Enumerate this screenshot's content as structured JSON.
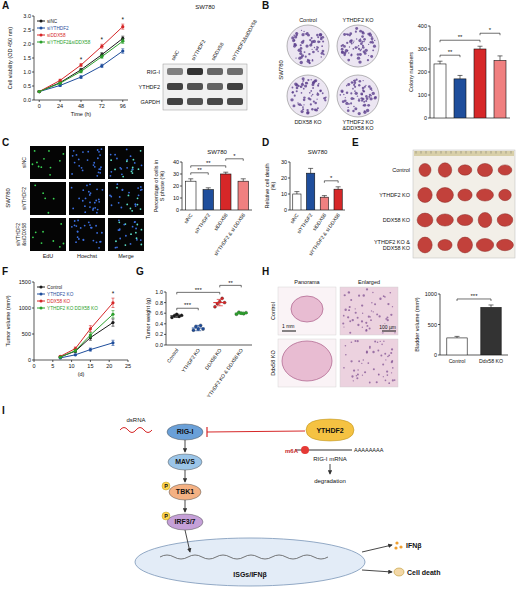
{
  "chart_data": [
    {
      "type": "line",
      "x_label": "Time (h)",
      "y_label": "Cell viability (OD 450 nm)",
      "x": [
        0,
        24,
        48,
        72,
        96
      ],
      "xlim": [
        -6,
        102
      ],
      "xticks": [
        0,
        24,
        48,
        72,
        96
      ],
      "ylim": [
        0,
        3
      ],
      "yticks": [
        {
          "value": 0,
          "label": "0.0"
        },
        {
          "value": 0.5,
          "label": "0.5"
        },
        {
          "value": 1,
          "label": "1.0"
        },
        {
          "value": 1.5,
          "label": "1.5"
        },
        {
          "value": 2,
          "label": "2.0"
        },
        {
          "value": 2.5,
          "label": "2.5"
        },
        {
          "value": 3,
          "label": "3.0"
        }
      ],
      "legend": "upper left",
      "marker": "circle",
      "series": [
        {
          "name": "siNC",
          "color": "#1a1a1a",
          "values": [
            0.3,
            0.62,
            1.08,
            1.62,
            2.2
          ],
          "errors": [
            0.02,
            0.04,
            0.05,
            0.07,
            0.08
          ]
        },
        {
          "name": "siYTHDF2",
          "color": "#1f4e9c",
          "values": [
            0.3,
            0.52,
            0.82,
            1.22,
            1.75
          ],
          "errors": [
            0.02,
            0.03,
            0.05,
            0.06,
            0.08
          ]
        },
        {
          "name": "siDDX58",
          "color": "#d62728",
          "values": [
            0.3,
            0.7,
            1.25,
            1.92,
            2.62
          ],
          "errors": [
            0.02,
            0.04,
            0.05,
            0.07,
            0.09
          ]
        },
        {
          "name": "siYTHDF2&siDDX58",
          "color": "#2ca02c",
          "values": [
            0.3,
            0.6,
            1.02,
            1.55,
            2.1
          ],
          "errors": [
            0.02,
            0.03,
            0.05,
            0.06,
            0.08
          ]
        }
      ],
      "annotations": [
        {
          "text": "*",
          "x": 48
        },
        {
          "text": "*",
          "x": 72
        },
        {
          "text": "*",
          "x": 96
        }
      ]
    },
    {
      "type": "bar",
      "y_label": "Colony numbers",
      "tick_labels": "y",
      "values": [
        235,
        170,
        300,
        250
      ],
      "errors": [
        12,
        15,
        12,
        20
      ],
      "colors": [
        "#ffffff",
        "#1f4e9c",
        "#d62728",
        "#f08080"
      ],
      "ylim": [
        0,
        400
      ],
      "yticks": [
        0,
        100,
        200,
        300,
        400
      ],
      "annotations": [
        {
          "text": "**",
          "between": [
            0,
            1
          ]
        },
        {
          "text": "**",
          "between": [
            0,
            2
          ]
        },
        {
          "text": "*",
          "between": [
            2,
            3
          ]
        }
      ]
    },
    {
      "type": "bar",
      "title": "SW780",
      "y_label": "Percentage of cells in S phase (%)",
      "categories": [
        "siNC",
        "siYTHDF2",
        "siDDX58",
        "siYTHDF2 & si DDX58"
      ],
      "values": [
        24,
        17,
        30,
        24
      ],
      "errors": [
        2,
        1.5,
        1.5,
        2
      ],
      "colors": [
        "#ffffff",
        "#1f4e9c",
        "#d62728",
        "#f08080"
      ],
      "ylim": [
        0,
        40
      ],
      "yticks": [
        0,
        10,
        20,
        30,
        40
      ],
      "annotations": [
        {
          "text": "**",
          "between": [
            0,
            1
          ]
        },
        {
          "text": "**",
          "between": [
            0,
            2
          ]
        },
        {
          "text": "*",
          "between": [
            2,
            3
          ]
        }
      ]
    },
    {
      "type": "bar",
      "title": "SW780",
      "y_label": "Relative cell death (%)",
      "categories": [
        "siNC",
        "siYTHDF2",
        "siDDX58",
        "siYTHDF2 & si DDX58"
      ],
      "values": [
        10,
        23,
        8,
        13
      ],
      "errors": [
        1.5,
        3,
        1,
        1.5
      ],
      "colors": [
        "#ffffff",
        "#1f4e9c",
        "#f08080",
        "#d62728"
      ],
      "ylim": [
        0,
        30
      ],
      "yticks": [
        0,
        10,
        20,
        30
      ],
      "annotations": [
        {
          "text": "*",
          "between": [
            2,
            3
          ]
        }
      ]
    },
    {
      "type": "line",
      "x_label": "(d)",
      "y_label": "Tumor volume (mm³)",
      "x": [
        7,
        11,
        15,
        21
      ],
      "xlim": [
        0,
        25
      ],
      "xticks": [
        0,
        5,
        10,
        15,
        20,
        25
      ],
      "ylim": [
        0,
        1500
      ],
      "yticks": [
        0,
        500,
        1000,
        1500
      ],
      "legend": "upper left",
      "marker": "circle",
      "series": [
        {
          "name": "Control",
          "color": "#1a1a1a",
          "values": [
            60,
            170,
            430,
            720
          ],
          "errors": [
            10,
            25,
            50,
            70
          ]
        },
        {
          "name": "YTHDF2 KO",
          "color": "#1f4e9c",
          "values": [
            40,
            100,
            200,
            330
          ],
          "errors": [
            8,
            15,
            30,
            50
          ]
        },
        {
          "name": "DDX58 KO",
          "color": "#d62728",
          "values": [
            70,
            220,
            600,
            1100
          ],
          "errors": [
            10,
            30,
            60,
            90
          ]
        },
        {
          "name": "YTHDF2 KO DDX58 KO",
          "color": "#2ca02c",
          "values": [
            55,
            180,
            480,
            880
          ],
          "errors": [
            10,
            25,
            50,
            70
          ]
        }
      ],
      "annotations": [
        {
          "text": "*",
          "x": 21
        }
      ]
    },
    {
      "type": "dot",
      "y_label": "Tumor weight (g)",
      "categories": [
        "Control",
        "YTHDF2 KO",
        "DDX58 KO",
        "YTHDF2 KO & DDX58 KO"
      ],
      "values": [
        0.55,
        0.32,
        0.8,
        0.6
      ],
      "errors": [
        0.03,
        0.05,
        0.06,
        0.02
      ],
      "points": [
        [
          0.52,
          0.55,
          0.58,
          0.54,
          0.56
        ],
        [
          0.28,
          0.35,
          0.3,
          0.37,
          0.3
        ],
        [
          0.72,
          0.78,
          0.82,
          0.88,
          0.8
        ],
        [
          0.58,
          0.62,
          0.6,
          0.59,
          0.61
        ]
      ],
      "colors": [
        "#1a1a1a",
        "#1f4e9c",
        "#d62728",
        "#2ca02c"
      ],
      "ylim": [
        0,
        1
      ],
      "yticks": [
        {
          "value": 0,
          "label": "0.0"
        },
        {
          "value": 0.2,
          "label": "0.2"
        },
        {
          "value": 0.4,
          "label": "0.4"
        },
        {
          "value": 0.6,
          "label": "0.6"
        },
        {
          "value": 0.8,
          "label": "0.8"
        },
        {
          "value": 1,
          "label": "1.0"
        }
      ],
      "annotations": [
        {
          "text": "***",
          "between": [
            0,
            1
          ]
        },
        {
          "text": "***",
          "between": [
            0,
            2
          ]
        },
        {
          "text": "**",
          "between": [
            2,
            3
          ]
        }
      ]
    },
    {
      "type": "bar",
      "y_label": "Bladder volume (mm³)",
      "categories": [
        "Control",
        "Ddx58 KO"
      ],
      "values": [
        280,
        780
      ],
      "errors": [
        25,
        40
      ],
      "colors": [
        "#ffffff",
        "#333333"
      ],
      "ylim": [
        0,
        1000
      ],
      "yticks": [
        0,
        500,
        1000
      ],
      "annotations": [
        {
          "text": "***",
          "between": [
            0,
            1
          ]
        }
      ]
    }
  ],
  "figure": {
    "panel_letters": [
      "A",
      "B",
      "C",
      "D",
      "E",
      "F",
      "G",
      "H",
      "I"
    ],
    "blot": {
      "title": "SW780",
      "lanes": [
        "siNC",
        "siYTHDF2",
        "siDDX58",
        "siYTHDF2&siDDX58"
      ],
      "rows": [
        "RIG-I",
        "YTHDF2",
        "GAPDH"
      ]
    },
    "colony_images": {
      "cell_line": "SW780",
      "labels": [
        "Control",
        "YTHDF2 KO",
        "DDX58 KO",
        "YTHDF2 KO &DDX58 KO"
      ]
    },
    "edu_images": {
      "cell_line": "SW780",
      "rows": [
        "siNC",
        "siYTHDF2",
        "siYTHDF2 &siDDX58"
      ],
      "columns": [
        "EdU",
        "Hoechst",
        "Merge"
      ]
    },
    "tumor_photo": {
      "rows": [
        "Control",
        "YTHDF2 KO",
        "DDX58 KO",
        "YTHDF2 KO & DDX58 KO"
      ]
    },
    "histology": {
      "columns": [
        "Panorama",
        "Enlarged"
      ],
      "rows": [
        "Control",
        "Ddx58 KO"
      ],
      "scale_bars": [
        "1 mm",
        "100 µm"
      ]
    },
    "pathway": {
      "ligand": "dsRNA",
      "receptor": "RIG-I",
      "adaptor": "MAVS",
      "kinase": "TBK1",
      "factor": "IRF3/7",
      "phospho": "P",
      "nuclear_output": "ISGs/IFNβ",
      "reader": "YTHDF2",
      "modification": "m6A",
      "transcript": "RIG-I mRNA",
      "poly_a": "AAAAAAAA",
      "fate": "degradation",
      "outputs": [
        "IFNβ",
        "Cell death"
      ]
    }
  }
}
